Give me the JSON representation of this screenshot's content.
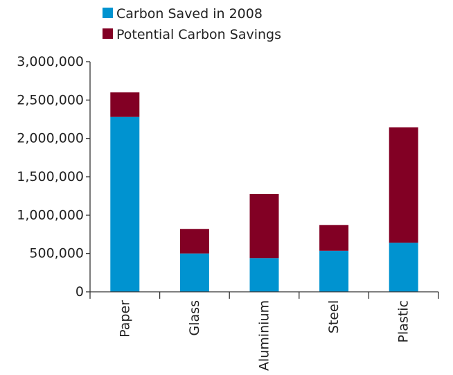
{
  "chart_data": {
    "type": "bar",
    "stacked": true,
    "categories": [
      "Paper",
      "Glass",
      "Aluminium",
      "Steel",
      "Plastic"
    ],
    "series": [
      {
        "name": "Carbon Saved in 2008",
        "color": "#0093d0",
        "values": [
          2280000,
          500000,
          440000,
          535000,
          640000
        ]
      },
      {
        "name": "Potential Carbon Savings",
        "color": "#820024",
        "values": [
          320000,
          320000,
          835000,
          335000,
          1505000
        ]
      }
    ],
    "ylim": [
      0,
      3000000
    ],
    "yticks": [
      0,
      500000,
      1000000,
      1500000,
      2000000,
      2500000,
      3000000
    ],
    "ytick_labels": [
      "0",
      "500,000",
      "1,000,000",
      "1,500,000",
      "2,000,000",
      "2,500,000",
      "3,000,000"
    ],
    "legend_position": "top",
    "grid": false,
    "title": "",
    "xlabel": "",
    "ylabel": ""
  }
}
